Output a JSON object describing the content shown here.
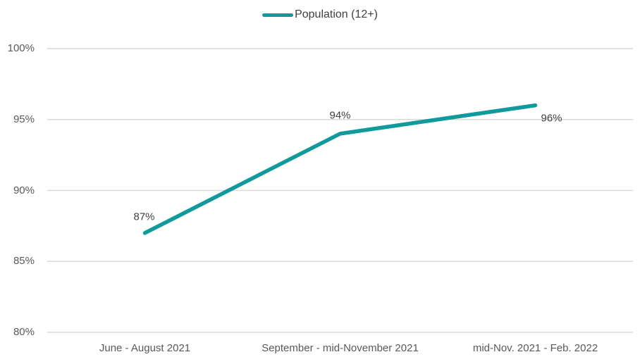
{
  "chart_data": {
    "type": "line",
    "title": "",
    "xlabel": "",
    "ylabel": "",
    "categories": [
      "June - August 2021",
      "September - mid-November 2021",
      "mid-Nov. 2021 - Feb. 2022"
    ],
    "series": [
      {
        "name": "Population (12+)",
        "values": [
          87,
          94,
          96
        ],
        "value_labels": [
          "87%",
          "94%",
          "96%"
        ],
        "color": "#119A9B"
      }
    ],
    "ylim": [
      80,
      100
    ],
    "yticks": [
      80,
      85,
      90,
      95,
      100
    ],
    "ytick_labels": [
      "80%",
      "85%",
      "90%",
      "95%",
      "100%"
    ],
    "grid": "horizontal",
    "legend_position": "top-center",
    "colors": {
      "line": "#119A9B",
      "gridline": "#D9D9D9",
      "axis_labels": "#595959",
      "data_labels": "#404040",
      "background": "#FFFFFF"
    }
  }
}
